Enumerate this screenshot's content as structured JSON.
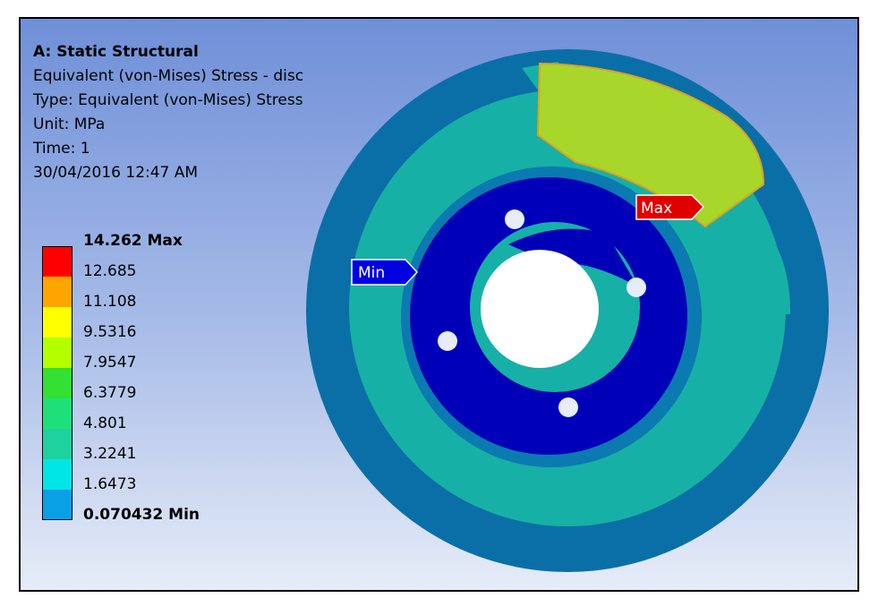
{
  "header": {
    "title": "A: Static Structural",
    "result": "Equivalent (von-Mises) Stress - disc",
    "type": "Type: Equivalent (von-Mises) Stress",
    "unit": "Unit: MPa",
    "time": "Time: 1",
    "timestamp": "30/04/2016 12:47 AM"
  },
  "legend": {
    "entries": [
      {
        "label": "14.262 Max",
        "bold": true,
        "color": "#ff0000"
      },
      {
        "label": "12.685",
        "bold": false,
        "color": "#ffa500"
      },
      {
        "label": "11.108",
        "bold": false,
        "color": "#ffff00"
      },
      {
        "label": "9.5316",
        "bold": false,
        "color": "#b3ff00"
      },
      {
        "label": "7.9547",
        "bold": false,
        "color": "#33e033"
      },
      {
        "label": "6.3779",
        "bold": false,
        "color": "#1ee07a"
      },
      {
        "label": "4.801",
        "bold": false,
        "color": "#1ed2a0"
      },
      {
        "label": "3.2241",
        "bold": false,
        "color": "#00e6e6"
      },
      {
        "label": "1.6473",
        "bold": false,
        "color": "#0aa0e6"
      },
      {
        "label": "0.070432 Min",
        "bold": true,
        "color": "#0000e0"
      }
    ]
  },
  "probes": {
    "max_label": "Max",
    "min_label": "Min"
  },
  "colors": {
    "max_tag": "#e00000",
    "min_tag": "#0000e0",
    "outer_ring": "#0a6fa6",
    "mid_ring": "#17b0a6",
    "inner_ring": "#0b7ab0",
    "hub": "#0000b8",
    "hot_zone": "#a8d62a"
  }
}
